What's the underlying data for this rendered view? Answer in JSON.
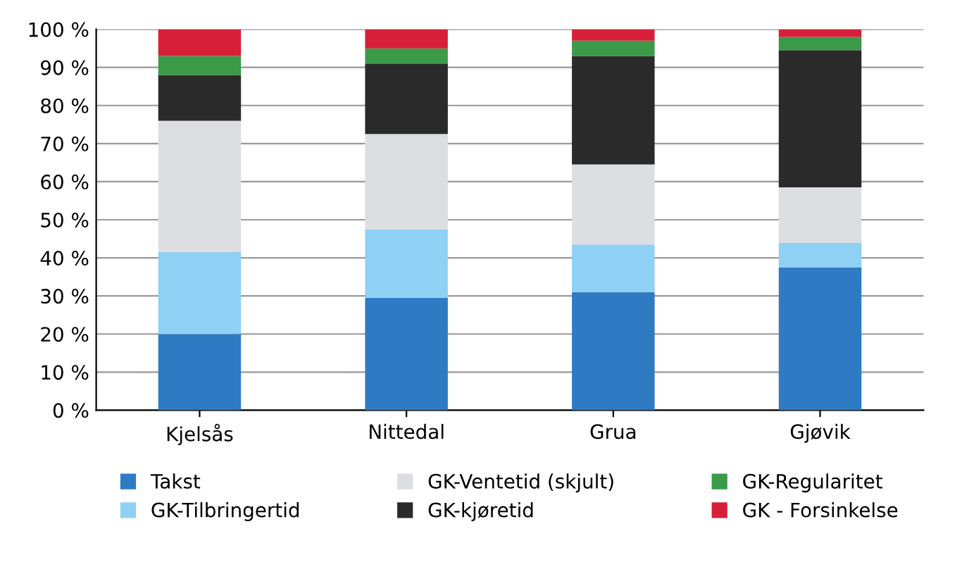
{
  "chart_data": {
    "type": "bar",
    "stacked": true,
    "categories": [
      "Kjelsås",
      "Nittedal",
      "Grua",
      "Gjøvik"
    ],
    "series": [
      {
        "name": "Takst",
        "color": "#2e7bc4",
        "values": [
          20,
          29.5,
          31,
          37.5
        ]
      },
      {
        "name": "GK-Tilbringertid",
        "color": "#8fd0f5",
        "values": [
          21.5,
          18,
          12.5,
          6.5
        ]
      },
      {
        "name": "GK-Ventetid (skjult)",
        "color": "#dcdee2",
        "values": [
          34.5,
          25,
          21,
          14.5
        ]
      },
      {
        "name": "GK-kjøretid",
        "color": "#2a2a2a",
        "values": [
          12,
          18.5,
          28.5,
          36
        ]
      },
      {
        "name": "GK-Regularitet",
        "color": "#3a9a48",
        "values": [
          5,
          4,
          4,
          3.5
        ]
      },
      {
        "name": "GK - Forsinkelse",
        "color": "#d81f3a",
        "values": [
          7,
          5,
          3,
          2
        ]
      }
    ],
    "ylim": [
      0,
      100
    ],
    "yticks": [
      {
        "value": 0,
        "label": "0 %"
      },
      {
        "value": 10,
        "label": "10 %"
      },
      {
        "value": 20,
        "label": "20 %"
      },
      {
        "value": 30,
        "label": "30 %"
      },
      {
        "value": 40,
        "label": "40 %"
      },
      {
        "value": 50,
        "label": "50 %"
      },
      {
        "value": 60,
        "label": "60 %"
      },
      {
        "value": 70,
        "label": "70 %"
      },
      {
        "value": 80,
        "label": "80 %"
      },
      {
        "value": 90,
        "label": "90 %"
      },
      {
        "value": 100,
        "label": "100 %"
      }
    ],
    "grid": "y",
    "legend": "bottom"
  }
}
